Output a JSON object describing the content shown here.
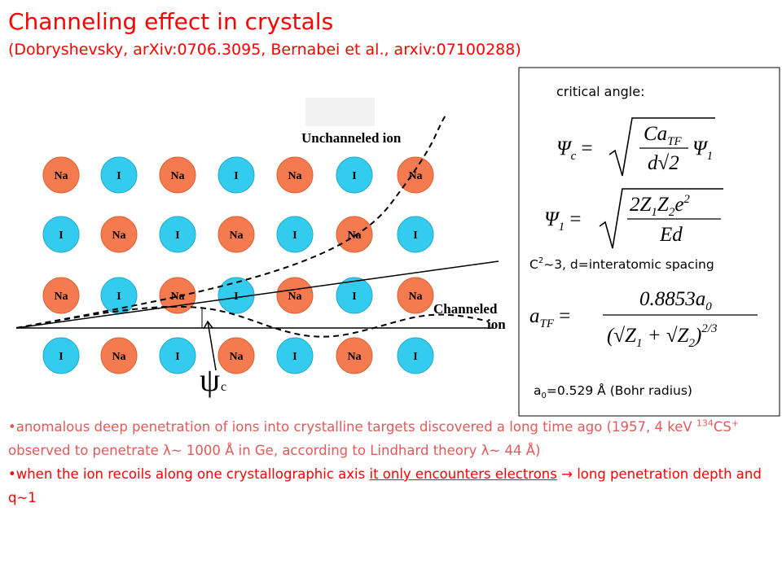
{
  "header": {
    "title": "Channeling effect in crystals",
    "subtitle": "(Dobryshevsky, arXiv:0706.3095, Bernabei et al., arxiv:07100288)"
  },
  "figure": {
    "atoms": [
      [
        "Na",
        "I",
        "Na",
        "I",
        "Na",
        "I",
        "Na"
      ],
      [
        "I",
        "Na",
        "I",
        "Na",
        "I",
        "Na",
        "I"
      ],
      [
        "Na",
        "I",
        "Na",
        "I",
        "Na",
        "I",
        "Na"
      ],
      [
        "I",
        "Na",
        "I",
        "Na",
        "I",
        "Na",
        "I"
      ]
    ],
    "unchanneled_label": "Unchanneled ion",
    "channeled_label": [
      "Channeled",
      "ion"
    ],
    "angle_label": [
      "ψ",
      "c"
    ]
  },
  "box": {
    "heading": "critical angle:",
    "formulas": [
      {
        "lhs": [
          "Ψ",
          "c",
          " ="
        ],
        "numerator": [
          "Ca",
          "TF"
        ],
        "denominator": [
          "d√2"
        ],
        "factor": [
          "Ψ",
          "1"
        ]
      },
      {
        "lhs": [
          "Ψ",
          "1",
          " ="
        ],
        "numerator": [
          "2Z",
          "1",
          "Z",
          "2",
          "e",
          "2"
        ],
        "denominator": [
          "Ed"
        ]
      },
      {
        "lhs": [
          "a",
          "TF",
          " ="
        ],
        "numerator": [
          "0.8853a",
          "0"
        ],
        "denominator": [
          "(√Z",
          "1",
          " + √Z",
          "2",
          ")",
          "2/3"
        ]
      }
    ],
    "note1": [
      "C",
      "2",
      "~3, d=interatomic spacing"
    ],
    "note2": [
      "a",
      "0",
      "=0.529 Å (Bohr radius)"
    ]
  },
  "bullets": [
    {
      "marker": "•",
      "parts": [
        "anomalous deep penetration of ions into crystalline targets discovered a long time ago (1957, 4 keV ",
        "134",
        "CS",
        "+",
        " observed to penetrate λ~ 1000 Å in Ge, according to Lindhard theory λ~ 44 Å)"
      ]
    },
    {
      "marker": "•",
      "parts": [
        "when the ion recoils along one crystallographic axis ",
        "it only encounters electrons",
        " → long penetration depth and q~1"
      ]
    }
  ]
}
